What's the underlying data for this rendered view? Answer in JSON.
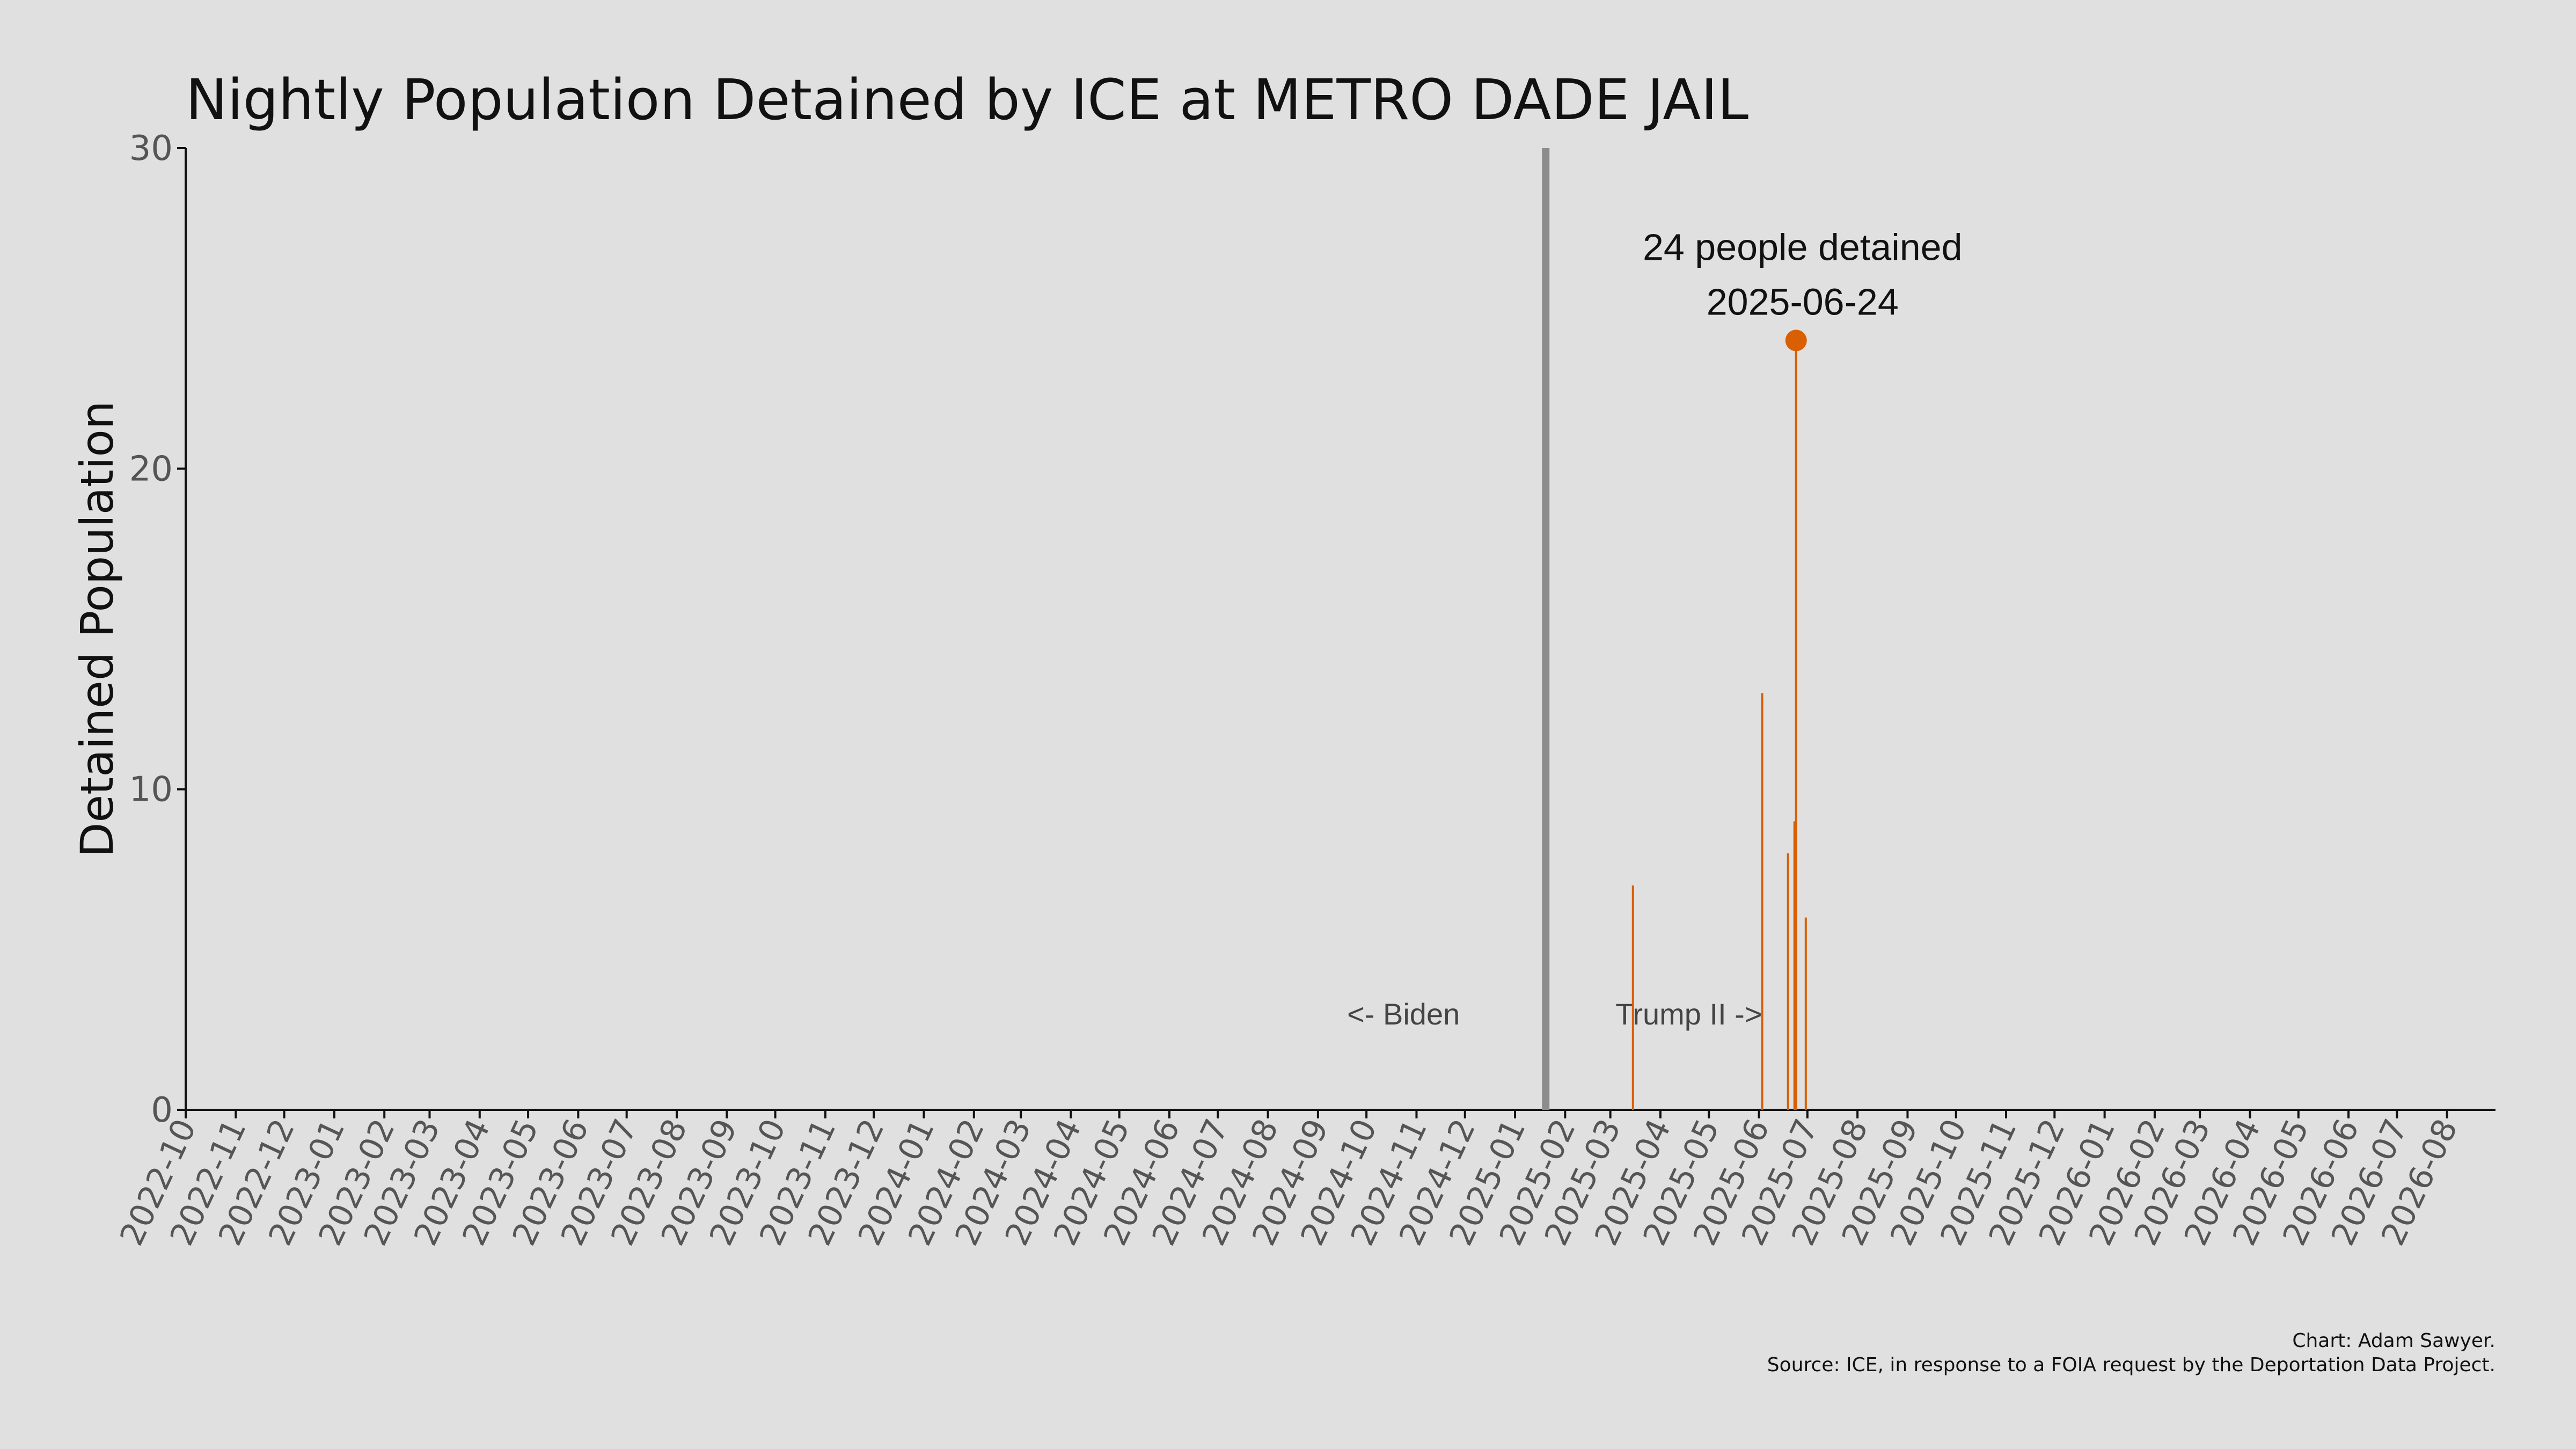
{
  "chart_data": {
    "type": "bar",
    "title": "Nightly Population Detained by ICE at METRO DADE JAIL",
    "ylabel": "Detained Population",
    "xlabel": "",
    "ylim": [
      0,
      30
    ],
    "yticks": [
      0,
      10,
      20,
      30
    ],
    "xlim": [
      "2022-10-01",
      "2026-08-31"
    ],
    "xtick_labels": [
      "2022-10",
      "2022-11",
      "2022-12",
      "2023-01",
      "2023-02",
      "2023-03",
      "2023-04",
      "2023-05",
      "2023-06",
      "2023-07",
      "2023-08",
      "2023-09",
      "2023-10",
      "2023-11",
      "2023-12",
      "2024-01",
      "2024-02",
      "2024-03",
      "2024-04",
      "2024-05",
      "2024-06",
      "2024-07",
      "2024-08",
      "2024-09",
      "2024-10",
      "2024-11",
      "2024-12",
      "2025-01",
      "2025-02",
      "2025-03",
      "2025-04",
      "2025-05",
      "2025-06",
      "2025-07",
      "2025-08",
      "2025-09",
      "2025-10",
      "2025-11",
      "2025-12",
      "2026-01",
      "2026-02",
      "2026-03",
      "2026-04",
      "2026-05",
      "2026-06",
      "2026-07",
      "2026-08"
    ],
    "grid": false,
    "series": [
      {
        "color": "#d95f02",
        "points": [
          {
            "date": "2025-03-15",
            "value": 7
          },
          {
            "date": "2025-06-03",
            "value": 13
          },
          {
            "date": "2025-06-19",
            "value": 8
          },
          {
            "date": "2025-06-23",
            "value": 9
          },
          {
            "date": "2025-06-24",
            "value": 24
          },
          {
            "date": "2025-06-30",
            "value": 6
          }
        ]
      }
    ],
    "divider": {
      "date": "2025-01-20",
      "color": "#8c8c8c"
    },
    "era_labels": {
      "before": "<- Biden",
      "after": "Trump II ->"
    },
    "peak_annotation": {
      "date": "2025-06-24",
      "value": 24,
      "line1": "24 people detained",
      "line2": "2025-06-24",
      "color": "#d95f02"
    }
  },
  "caption": {
    "line1": "Chart: Adam Sawyer.",
    "line2": "Source: ICE, in response to a FOIA request by the Deportation Data Project."
  }
}
